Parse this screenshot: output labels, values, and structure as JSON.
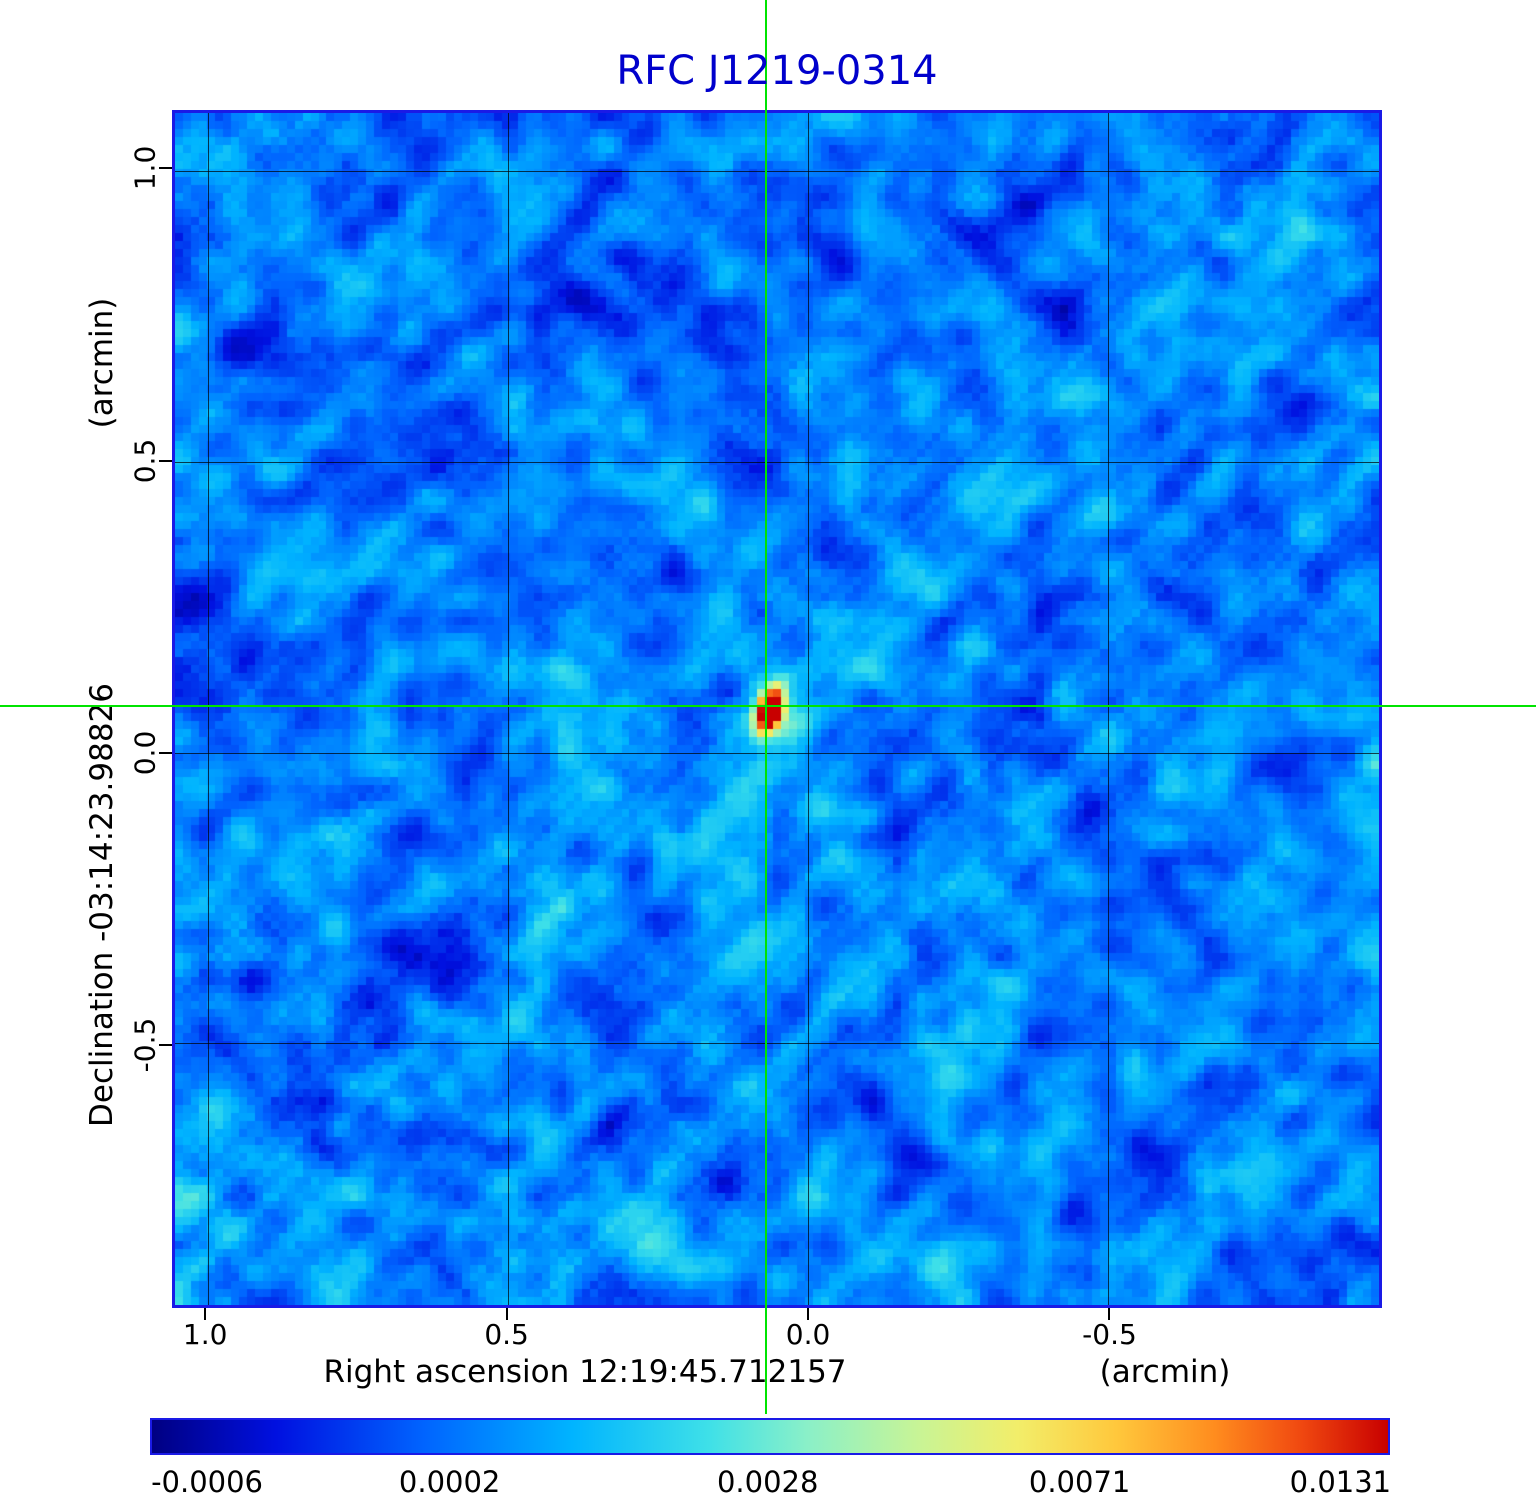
{
  "figure": {
    "title": "RFC J1219-0314",
    "title_color": "#0000cc",
    "frame_color": "#1a1ae6",
    "crosshair_color": "#00e400",
    "grid_color": "#000000"
  },
  "chart_data": {
    "type": "heatmap",
    "title": "RFC J1219-0314",
    "x_axis": {
      "label": "Right ascension  12:19:45.712157",
      "unit": "(arcmin)",
      "tick_labels": [
        "1.0",
        "0.5",
        "0.0",
        "-0.5"
      ],
      "tick_values": [
        1.0,
        0.5,
        0.0,
        -0.5
      ],
      "range": [
        1.055,
        -0.952
      ]
    },
    "y_axis": {
      "label": "Declination  -03:14:23.98826",
      "unit": "(arcmin)",
      "tick_labels": [
        "1.0",
        "0.5",
        "0.0",
        "-0.5"
      ],
      "tick_values": [
        1.0,
        0.5,
        0.0,
        -0.5
      ],
      "range": [
        1.1,
        -0.95
      ]
    },
    "colorbar": {
      "tick_labels": [
        "-0.0006",
        "0.0002",
        "0.0028",
        "0.0071",
        "0.0131"
      ],
      "tick_values": [
        -0.0006,
        0.0002,
        0.0028,
        0.0071,
        0.0131
      ],
      "min": -0.0006,
      "max": 0.0131,
      "scale": "sqrt",
      "colormap_stops": [
        {
          "t": 0.0,
          "color": "#000082"
        },
        {
          "t": 0.1,
          "color": "#0010e0"
        },
        {
          "t": 0.22,
          "color": "#0064ff"
        },
        {
          "t": 0.34,
          "color": "#00b4ff"
        },
        {
          "t": 0.45,
          "color": "#3ee0e8"
        },
        {
          "t": 0.53,
          "color": "#8af0c8"
        },
        {
          "t": 0.62,
          "color": "#c8f496"
        },
        {
          "t": 0.7,
          "color": "#f2ee6a"
        },
        {
          "t": 0.78,
          "color": "#ffc83c"
        },
        {
          "t": 0.86,
          "color": "#ff8c1e"
        },
        {
          "t": 0.93,
          "color": "#f04810"
        },
        {
          "t": 1.0,
          "color": "#c80000"
        }
      ]
    },
    "source": {
      "ra": "12:19:45.712157",
      "dec": "-03:14:23.98826",
      "ra_offset_arcmin": 0.07,
      "dec_offset_arcmin": 0.08,
      "peak_value": 0.0131
    },
    "grid": true,
    "legend": false
  }
}
